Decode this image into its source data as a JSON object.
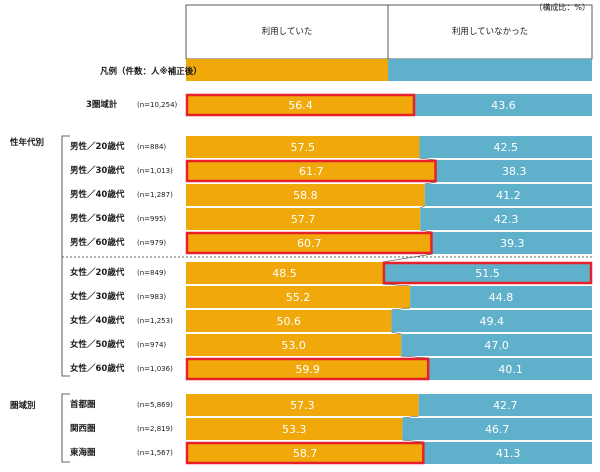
{
  "unit_note": "（構成比：%）",
  "legend_caption": "凡例（件数：人※補正後）",
  "headers": {
    "used": "利用していた",
    "not_used": "利用していなかった"
  },
  "groups": {
    "age_gender": "性年代別",
    "region": "圏域別"
  },
  "colors": {
    "used": "#F0A80A",
    "not_used": "#5FB1CB",
    "highlight": "#E8202A",
    "text_on_bar": "#ffffff"
  },
  "chart_data": {
    "type": "bar",
    "orientation": "horizontal",
    "stacked": true,
    "percent": true,
    "series_names": [
      "利用していた",
      "利用していなかった"
    ],
    "rows": [
      {
        "key": "total",
        "label": "3圏域計",
        "n": "(n=10,254)",
        "used": 56.4,
        "not_used": 43.6,
        "highlight": "used"
      },
      {
        "key": "m20",
        "label": "男性／20歳代",
        "n": "(n=884)",
        "used": 57.5,
        "not_used": 42.5,
        "highlight": ""
      },
      {
        "key": "m30",
        "label": "男性／30歳代",
        "n": "(n=1,013)",
        "used": 61.7,
        "not_used": 38.3,
        "highlight": "used"
      },
      {
        "key": "m40",
        "label": "男性／40歳代",
        "n": "(n=1,287)",
        "used": 58.8,
        "not_used": 41.2,
        "highlight": ""
      },
      {
        "key": "m50",
        "label": "男性／50歳代",
        "n": "(n=995)",
        "used": 57.7,
        "not_used": 42.3,
        "highlight": ""
      },
      {
        "key": "m60",
        "label": "男性／60歳代",
        "n": "(n=979)",
        "used": 60.7,
        "not_used": 39.3,
        "highlight": "used"
      },
      {
        "key": "f20",
        "label": "女性／20歳代",
        "n": "(n=849)",
        "used": 48.5,
        "not_used": 51.5,
        "highlight": "not_used"
      },
      {
        "key": "f30",
        "label": "女性／30歳代",
        "n": "(n=983)",
        "used": 55.2,
        "not_used": 44.8,
        "highlight": ""
      },
      {
        "key": "f40",
        "label": "女性／40歳代",
        "n": "(n=1,253)",
        "used": 50.6,
        "not_used": 49.4,
        "highlight": ""
      },
      {
        "key": "f50",
        "label": "女性／50歳代",
        "n": "(n=974)",
        "used": 53.0,
        "not_used": 47.0,
        "highlight": ""
      },
      {
        "key": "f60",
        "label": "女性／60歳代",
        "n": "(n=1,036)",
        "used": 59.9,
        "not_used": 40.1,
        "highlight": "used"
      },
      {
        "key": "shuto",
        "label": "首都圏",
        "n": "(n=5,869)",
        "used": 57.3,
        "not_used": 42.7,
        "highlight": ""
      },
      {
        "key": "kansai",
        "label": "関西圏",
        "n": "(n=2,819)",
        "used": 53.3,
        "not_used": 46.7,
        "highlight": ""
      },
      {
        "key": "tokai",
        "label": "東海圏",
        "n": "(n=1,567)",
        "used": 58.7,
        "not_used": 41.3,
        "highlight": "used"
      }
    ]
  }
}
